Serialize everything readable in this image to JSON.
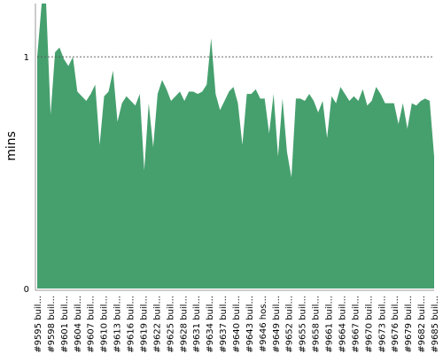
{
  "chart_data": {
    "type": "area",
    "ylabel": "mins",
    "xlabel": "",
    "ylim": [
      0,
      1.23
    ],
    "y_ticks": [
      0,
      1
    ],
    "y_tick_labels": [
      "0",
      "1"
    ],
    "grid": "horizontal dotted line at 1",
    "colors": {
      "fill": "#46a06e",
      "axis": "#999999",
      "grid": "#555555"
    },
    "x_tick_labels": [
      "#9595 buil...",
      "#9598 buil...",
      "#9601 buil...",
      "#9604 buil...",
      "#9607 buil...",
      "#9610 buil...",
      "#9613 buil...",
      "#9616 buil...",
      "#9619 buil...",
      "#9622 buil...",
      "#9625 buil...",
      "#9628 buil...",
      "#9631 buil...",
      "#9634 buil...",
      "#9637 buil...",
      "#9640 buil...",
      "#9643 buil...",
      "#9646 hos...",
      "#9649 buil...",
      "#9652 buil...",
      "#9655 buil...",
      "#9658 buil...",
      "#9661 buil...",
      "#9664 buil...",
      "#9667 buil...",
      "#9670 buil...",
      "#9673 buil...",
      "#9676 buil...",
      "#9679 buil...",
      "#9682 buil...",
      "#9685 buil..."
    ],
    "values": [
      1.0,
      1.23,
      1.23,
      0.75,
      1.02,
      1.04,
      0.99,
      0.96,
      1.0,
      0.85,
      0.83,
      0.81,
      0.84,
      0.88,
      0.62,
      0.83,
      0.85,
      0.94,
      0.72,
      0.8,
      0.83,
      0.81,
      0.79,
      0.84,
      0.51,
      0.8,
      0.61,
      0.84,
      0.9,
      0.86,
      0.81,
      0.83,
      0.85,
      0.81,
      0.85,
      0.85,
      0.84,
      0.85,
      0.88,
      1.08,
      0.84,
      0.77,
      0.81,
      0.85,
      0.87,
      0.8,
      0.62,
      0.84,
      0.84,
      0.86,
      0.82,
      0.82,
      0.67,
      0.84,
      0.57,
      0.82,
      0.59,
      0.48,
      0.82,
      0.82,
      0.81,
      0.84,
      0.81,
      0.76,
      0.81,
      0.65,
      0.83,
      0.8,
      0.87,
      0.84,
      0.81,
      0.83,
      0.81,
      0.86,
      0.79,
      0.81,
      0.87,
      0.84,
      0.8,
      0.8,
      0.8,
      0.71,
      0.8,
      0.69,
      0.8,
      0.79,
      0.81,
      0.82,
      0.81,
      0.57
    ]
  }
}
